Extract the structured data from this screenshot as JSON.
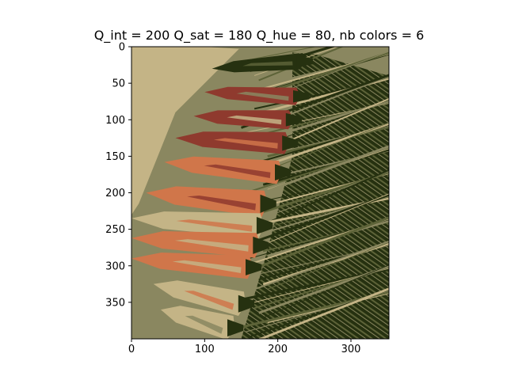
{
  "chart_data": {
    "type": "image",
    "title": "Q_int = 200 Q_sat = 180 Q_hue = 80, nb colors = 6",
    "image_width": 352,
    "image_height": 400,
    "xlim": [
      0,
      352
    ],
    "ylim": [
      400,
      0
    ],
    "x_ticks": [
      0,
      100,
      200,
      300
    ],
    "x_tick_labels": [
      "0",
      "100",
      "200",
      "300"
    ],
    "y_ticks": [
      0,
      50,
      100,
      150,
      200,
      250,
      300,
      350
    ],
    "y_tick_labels": [
      "0",
      "50",
      "100",
      "150",
      "200",
      "250",
      "300",
      "350"
    ],
    "palette": {
      "tan": "#c4b486",
      "olive": "#8a8760",
      "moss": "#5d6338",
      "dark_green": "#263110",
      "brick": "#8f3a2e",
      "orange": "#d0764a"
    },
    "depicted_subject": "posterized photograph of a row of carrots with their green tops"
  }
}
